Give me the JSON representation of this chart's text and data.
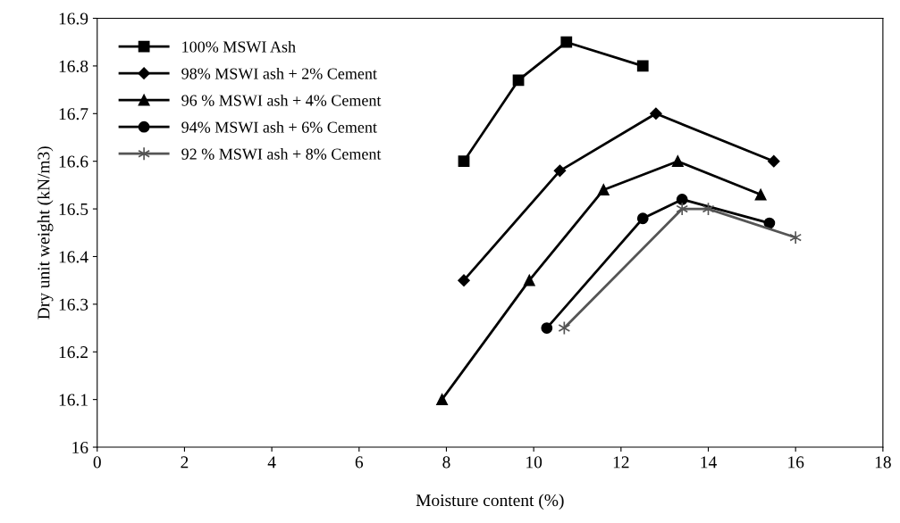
{
  "chart_data": {
    "type": "line",
    "xlabel": "Moisture content (%)",
    "ylabel": "Dry unit weight (kN/m3)",
    "xlim": [
      0,
      18
    ],
    "xticks": [
      0,
      2,
      4,
      6,
      8,
      10,
      12,
      14,
      16,
      18
    ],
    "ylim": [
      16,
      16.9
    ],
    "yticks": [
      16,
      16.1,
      16.2,
      16.3,
      16.4,
      16.5,
      16.6,
      16.7,
      16.8,
      16.9
    ],
    "grid": false,
    "legend": "top left",
    "line_style": "solid",
    "series": [
      {
        "name": "100% MSWI Ash",
        "color": "#000000",
        "marker": "square",
        "x": [
          8.4,
          9.65,
          10.75,
          12.5
        ],
        "values": [
          16.6,
          16.77,
          16.85,
          16.8
        ]
      },
      {
        "name": "98% MSWI ash + 2% Cement",
        "color": "#000000",
        "marker": "diamond",
        "x": [
          8.4,
          10.6,
          12.8,
          15.5
        ],
        "values": [
          16.35,
          16.58,
          16.7,
          16.6
        ]
      },
      {
        "name": "96 % MSWI ash + 4% Cement",
        "color": "#000000",
        "marker": "triangle",
        "x": [
          7.9,
          9.9,
          11.6,
          13.3,
          15.2
        ],
        "values": [
          16.1,
          16.35,
          16.54,
          16.6,
          16.53
        ]
      },
      {
        "name": "94% MSWI ash + 6% Cement",
        "color": "#000000",
        "marker": "circle",
        "x": [
          10.3,
          12.5,
          13.4,
          15.4
        ],
        "values": [
          16.25,
          16.48,
          16.52,
          16.47
        ]
      },
      {
        "name": "92 % MSWI ash + 8% Cement",
        "color": "#555555",
        "marker": "cross",
        "x": [
          10.7,
          13.4,
          14.0,
          16.0
        ],
        "values": [
          16.25,
          16.5,
          16.5,
          16.44
        ]
      }
    ]
  }
}
